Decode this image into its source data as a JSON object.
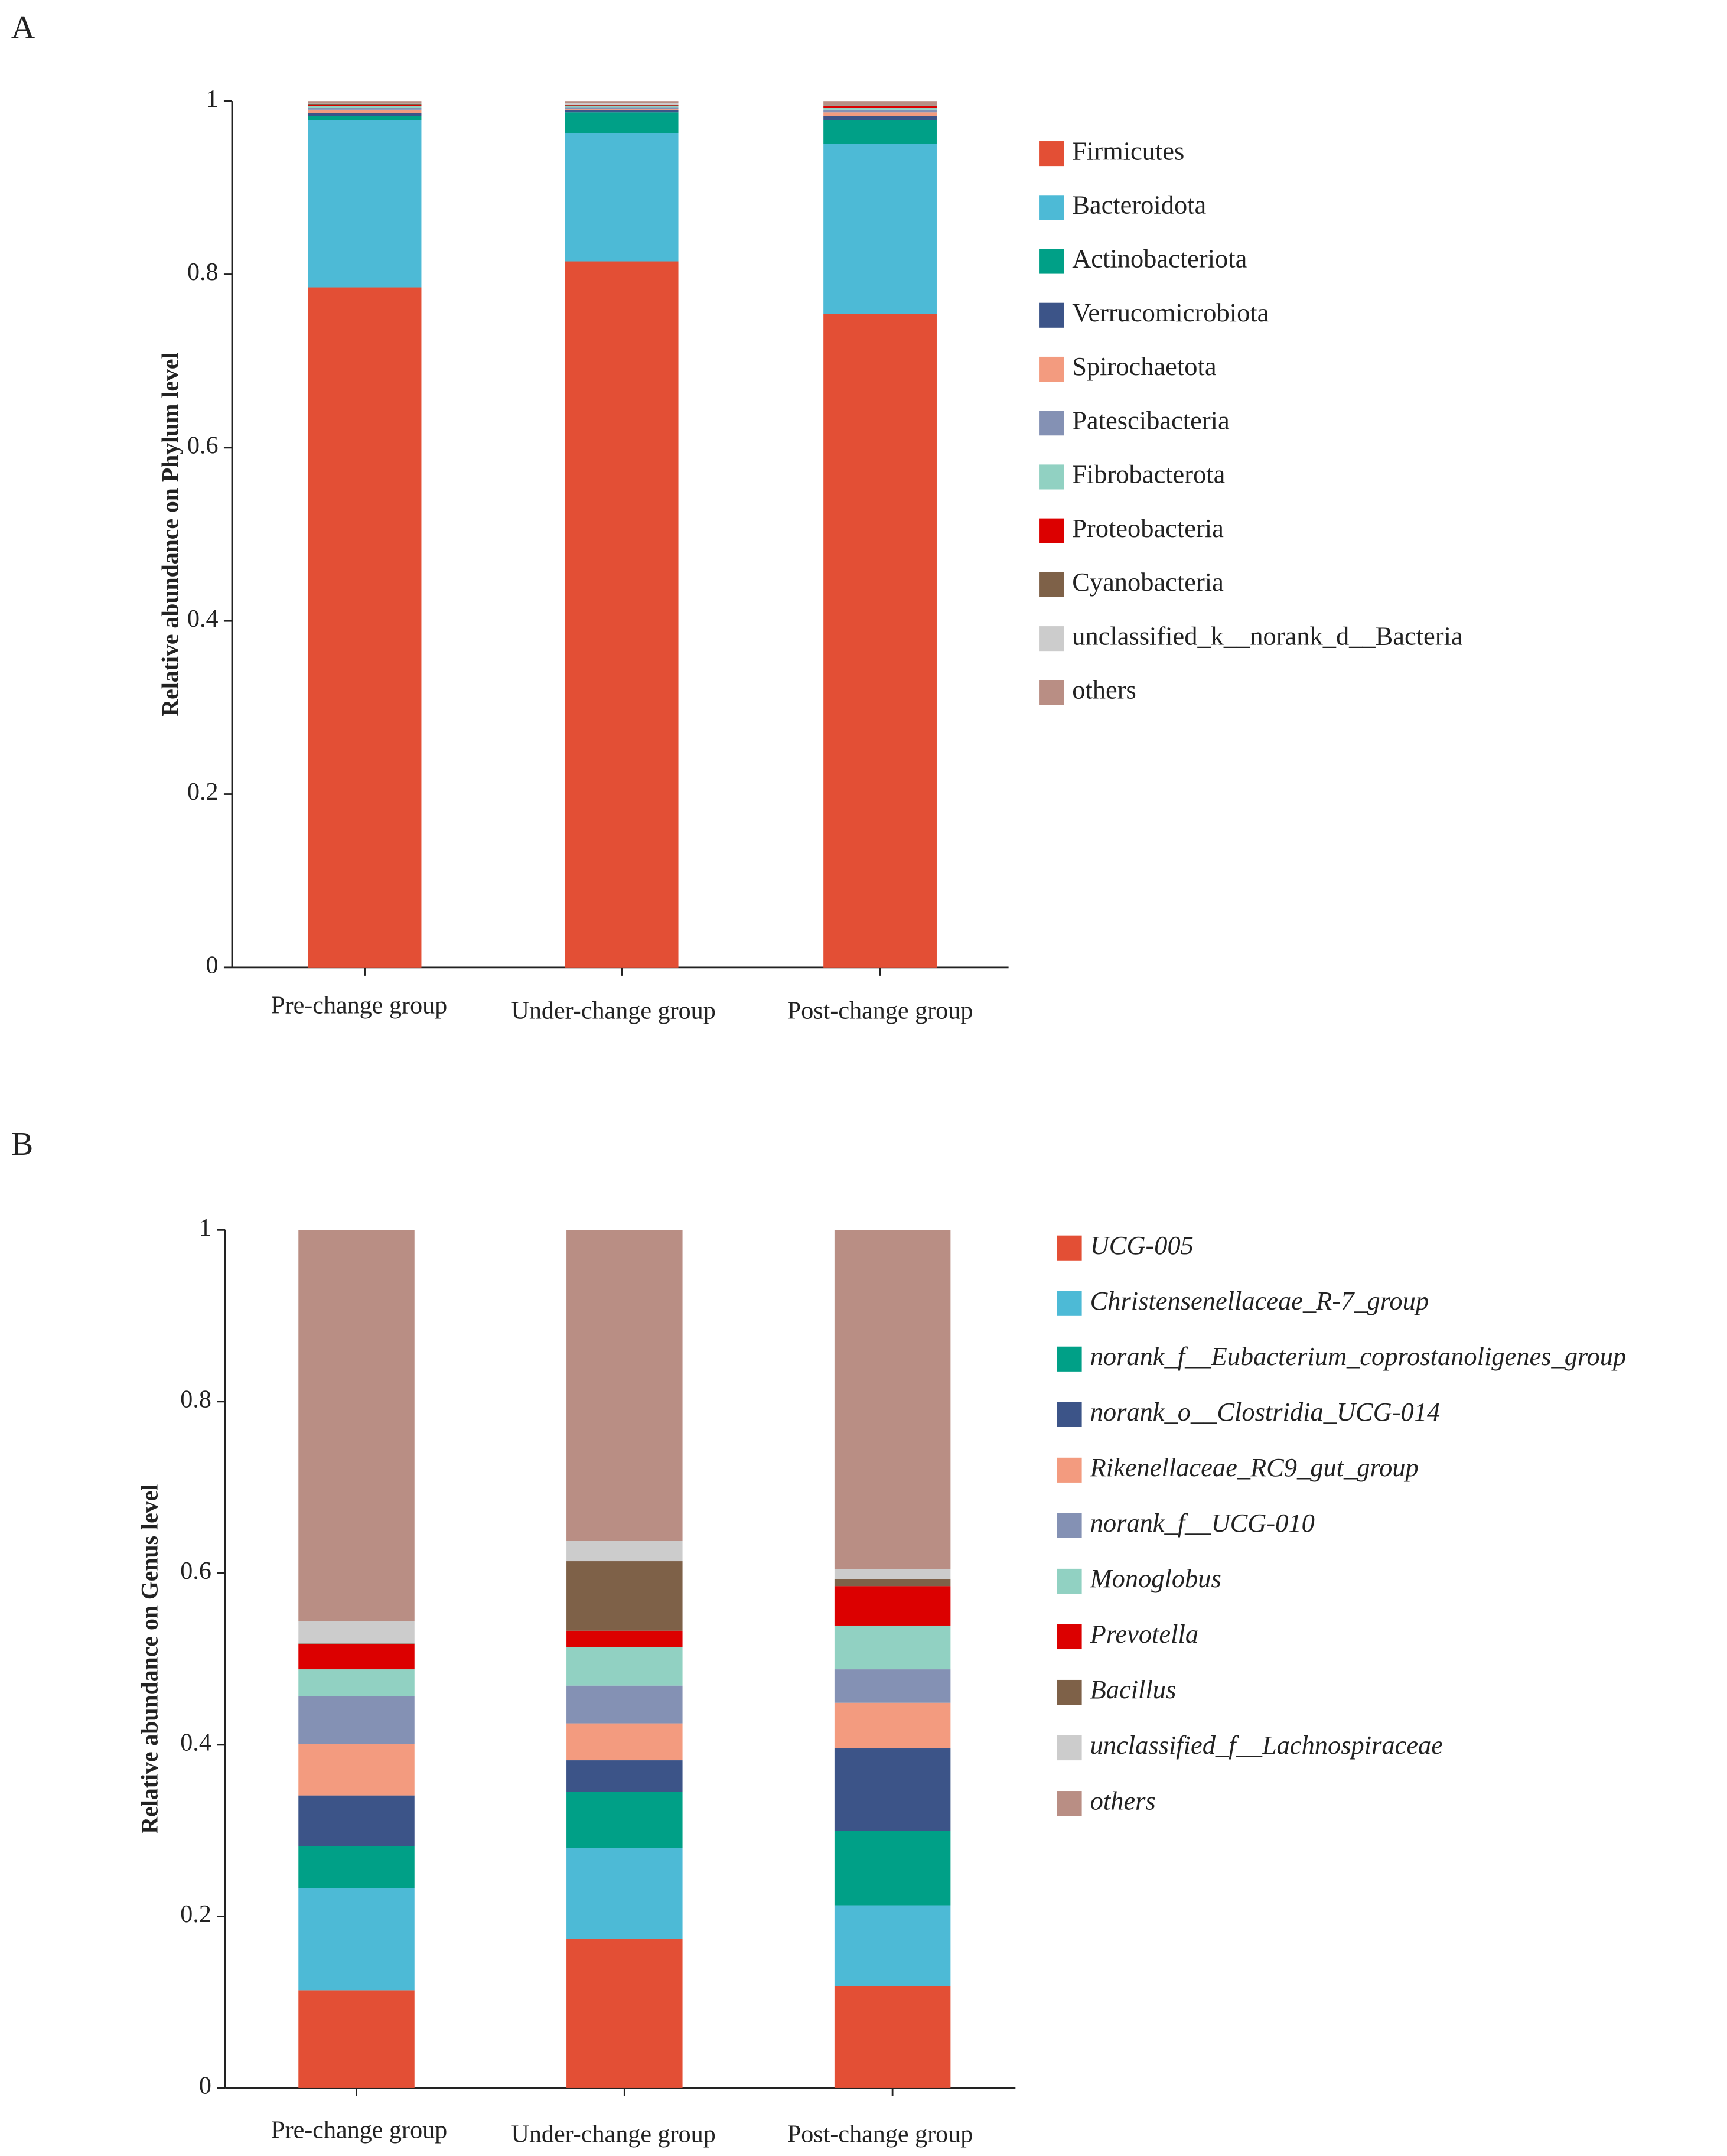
{
  "chart_data": [
    {
      "type": "stacked_bar",
      "label": "A",
      "ylabel": "Relative abundance on Phylum level",
      "categories": [
        "Pre-change group",
        "Under-change group",
        "Post-change group"
      ],
      "ylim": [
        0,
        1
      ],
      "yticks": [
        0,
        0.2,
        0.4,
        0.6,
        0.8,
        1
      ],
      "italic_legend": false,
      "series": [
        {
          "name": "Firmicutes",
          "color": "#e34f35",
          "values": [
            0.785,
            0.815,
            0.754
          ]
        },
        {
          "name": "Bacteroidota",
          "color": "#4dbad6",
          "values": [
            0.193,
            0.148,
            0.197
          ]
        },
        {
          "name": "Actinobacteriota",
          "color": "#00a087",
          "values": [
            0.005,
            0.024,
            0.027
          ]
        },
        {
          "name": "Verrucomicrobiota",
          "color": "#3c5488",
          "values": [
            0.003,
            0.003,
            0.005
          ]
        },
        {
          "name": "Spirochaetota",
          "color": "#f39b7f",
          "values": [
            0.004,
            0.001,
            0.004
          ]
        },
        {
          "name": "Patescibacteria",
          "color": "#8491b4",
          "values": [
            0.002,
            0.002,
            0.003
          ]
        },
        {
          "name": "Fibrobacterota",
          "color": "#91d1c2",
          "values": [
            0.002,
            0.001,
            0.002
          ]
        },
        {
          "name": "Proteobacteria",
          "color": "#dc0000",
          "values": [
            0.002,
            0.001,
            0.002
          ]
        },
        {
          "name": "Cyanobacteria",
          "color": "#7e6148",
          "values": [
            0.001,
            0.001,
            0.001
          ]
        },
        {
          "name": "unclassified_k__norank_d__Bacteria",
          "color": "#cccccc",
          "values": [
            0.001,
            0.002,
            0.001
          ]
        },
        {
          "name": "others",
          "color": "#b98e84",
          "values": [
            0.002,
            0.002,
            0.004
          ]
        }
      ]
    },
    {
      "type": "stacked_bar",
      "label": "B",
      "ylabel": "Relative abundance on Genus level",
      "categories": [
        "Pre-change group",
        "Under-change group",
        "Post-change group"
      ],
      "ylim": [
        0,
        1
      ],
      "yticks": [
        0,
        0.2,
        0.4,
        0.6,
        0.8,
        1
      ],
      "italic_legend": true,
      "series": [
        {
          "name": "UCG-005",
          "color": "#e34f35",
          "values": [
            0.114,
            0.174,
            0.119
          ]
        },
        {
          "name": "Christensenellaceae_R-7_group",
          "color": "#4dbad6",
          "values": [
            0.119,
            0.106,
            0.094
          ]
        },
        {
          "name": "norank_f__Eubacterium_coprostanoligenes_group",
          "color": "#00a087",
          "values": [
            0.049,
            0.065,
            0.087
          ]
        },
        {
          "name": "norank_o__Clostridia_UCG-014",
          "color": "#3c5488",
          "values": [
            0.059,
            0.037,
            0.096
          ]
        },
        {
          "name": "Rikenellaceae_RC9_gut_group",
          "color": "#f39b7f",
          "values": [
            0.06,
            0.043,
            0.053
          ]
        },
        {
          "name": "norank_f__UCG-010",
          "color": "#8491b4",
          "values": [
            0.056,
            0.044,
            0.039
          ]
        },
        {
          "name": "Monoglobus",
          "color": "#91d1c2",
          "values": [
            0.031,
            0.045,
            0.051
          ]
        },
        {
          "name": "Prevotella",
          "color": "#dc0000",
          "values": [
            0.029,
            0.019,
            0.046
          ]
        },
        {
          "name": "Bacillus",
          "color": "#7e6148",
          "values": [
            0.001,
            0.081,
            0.008
          ]
        },
        {
          "name": "unclassified_f__Lachnospiraceae",
          "color": "#cccccc",
          "values": [
            0.026,
            0.024,
            0.012
          ]
        },
        {
          "name": "others",
          "color": "#b98e84",
          "values": [
            0.456,
            0.362,
            0.395
          ]
        }
      ]
    }
  ]
}
